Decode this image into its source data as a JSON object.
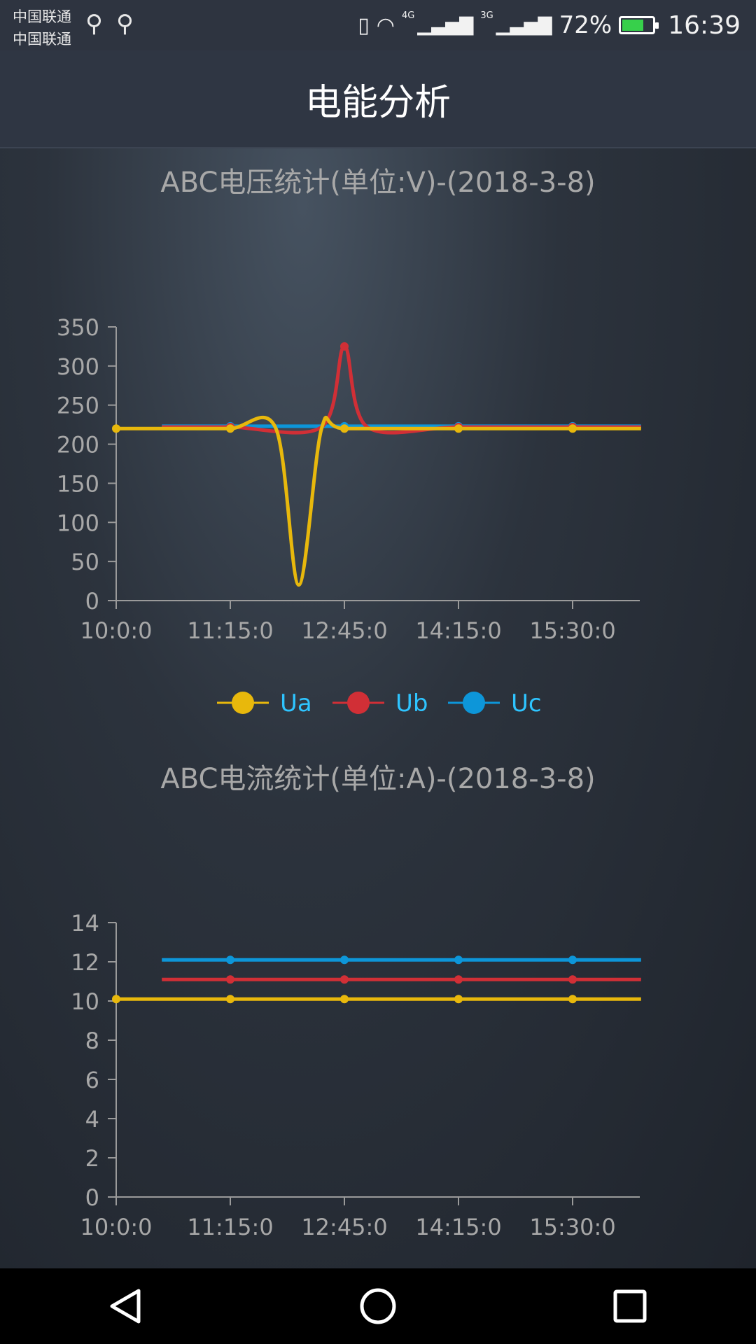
{
  "status_bar": {
    "carrier1": "中国联通",
    "carrier2": "中国联通",
    "network1": "4G",
    "network2": "3G",
    "battery_pct": "72%",
    "battery_level": 0.72,
    "time": "16:39"
  },
  "header": {
    "title": "电能分析"
  },
  "colors": {
    "ua": "#e8b80c",
    "ub": "#d12f36",
    "uc": "#0d96d9",
    "axis": "#9a9a9a",
    "text": "#a8a8a8",
    "legend_text": "#2ec4ff"
  },
  "chart_data": [
    {
      "type": "line",
      "title": "ABC电压统计(单位:V)-(2018-3-8)",
      "x_ticks": [
        "10:0:0",
        "11:15:0",
        "12:45:0",
        "14:15:0",
        "15:30:0"
      ],
      "y_ticks": [
        "0",
        "50",
        "100",
        "150",
        "200",
        "250",
        "300",
        "350"
      ],
      "ylim": [
        0,
        350
      ],
      "series": [
        {
          "name": "Ua",
          "color": "#e8b80c",
          "points": [
            [
              0,
              220
            ],
            [
              0.5,
              220
            ],
            [
              1,
              220
            ],
            [
              1.4,
              220
            ],
            [
              1.6,
              20
            ],
            [
              1.8,
              220
            ],
            [
              2,
              220
            ],
            [
              3,
              220
            ],
            [
              4,
              220
            ],
            [
              4.6,
              220
            ]
          ]
        },
        {
          "name": "Ub",
          "color": "#d12f36",
          "points": [
            [
              0.4,
              222
            ],
            [
              1,
              222
            ],
            [
              1.8,
              222
            ],
            [
              2,
              325
            ],
            [
              2.2,
              222
            ],
            [
              3,
              222
            ],
            [
              4,
              222
            ],
            [
              4.6,
              222
            ]
          ]
        },
        {
          "name": "Uc",
          "color": "#0d96d9",
          "points": [
            [
              0.4,
              223
            ],
            [
              1,
              223
            ],
            [
              2,
              223
            ],
            [
              3,
              223
            ],
            [
              4,
              223
            ],
            [
              4.6,
              223
            ]
          ]
        }
      ],
      "legend": [
        "Ua",
        "Ub",
        "Uc"
      ]
    },
    {
      "type": "line",
      "title": "ABC电流统计(单位:A)-(2018-3-8)",
      "x_ticks": [
        "10:0:0",
        "11:15:0",
        "12:45:0",
        "14:15:0",
        "15:30:0"
      ],
      "y_ticks": [
        "0",
        "2",
        "4",
        "6",
        "8",
        "10",
        "12",
        "14"
      ],
      "ylim": [
        0,
        14
      ],
      "series": [
        {
          "name": "Ua",
          "color": "#e8b80c",
          "points": [
            [
              0,
              10.1
            ],
            [
              1,
              10.1
            ],
            [
              2,
              10.1
            ],
            [
              3,
              10.1
            ],
            [
              4,
              10.1
            ],
            [
              4.6,
              10.1
            ]
          ]
        },
        {
          "name": "Ub",
          "color": "#d12f36",
          "points": [
            [
              0.4,
              11.1
            ],
            [
              1,
              11.1
            ],
            [
              2,
              11.1
            ],
            [
              3,
              11.1
            ],
            [
              4,
              11.1
            ],
            [
              4.6,
              11.1
            ]
          ]
        },
        {
          "name": "Uc",
          "color": "#0d96d9",
          "points": [
            [
              0.4,
              12.1
            ],
            [
              1,
              12.1
            ],
            [
              2,
              12.1
            ],
            [
              3,
              12.1
            ],
            [
              4,
              12.1
            ],
            [
              4.6,
              12.1
            ]
          ]
        }
      ]
    }
  ]
}
